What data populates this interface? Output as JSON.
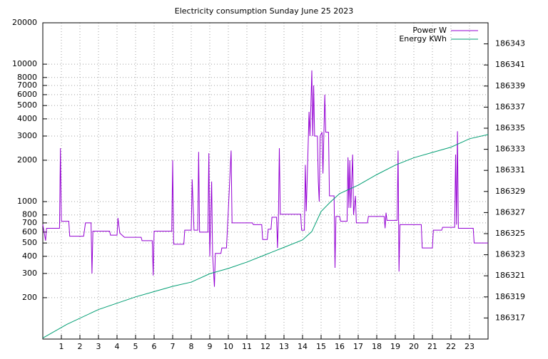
{
  "chart_data": {
    "type": "line",
    "title": "Electricity consumption Sunday June 25 2023",
    "xlim": [
      0,
      24
    ],
    "xticks": [
      1,
      2,
      3,
      4,
      5,
      6,
      7,
      8,
      9,
      10,
      11,
      12,
      13,
      14,
      15,
      16,
      17,
      18,
      19,
      20,
      21,
      22,
      23
    ],
    "ylim": [
      100,
      20000
    ],
    "yticks": [
      200,
      300,
      400,
      500,
      600,
      700,
      800,
      1000,
      2000,
      3000,
      4000,
      5000,
      6000,
      7000,
      8000,
      10000,
      20000
    ],
    "log_y": true,
    "y2lim": [
      186315,
      186345
    ],
    "y2ticks": [
      186317,
      186319,
      186321,
      186323,
      186325,
      186327,
      186329,
      186331,
      186333,
      186335,
      186337,
      186339,
      186341,
      186343
    ],
    "grid": true,
    "legend": "top right",
    "series": [
      {
        "name": "Power W",
        "color": "#9400d3",
        "x": [
          0,
          0.15,
          0.2,
          0.9,
          0.95,
          1.0,
          1.4,
          1.45,
          2.2,
          2.3,
          2.6,
          2.65,
          2.7,
          3.6,
          3.65,
          4.0,
          4.05,
          4.15,
          4.4,
          5.3,
          5.35,
          5.9,
          5.95,
          6.0,
          6.95,
          7.0,
          7.05,
          7.6,
          7.65,
          8.0,
          8.05,
          8.15,
          8.35,
          8.4,
          8.45,
          8.9,
          8.95,
          9.0,
          9.1,
          9.15,
          9.25,
          9.3,
          9.6,
          9.65,
          9.9,
          10.0,
          10.15,
          10.2,
          11.3,
          11.35,
          11.8,
          11.85,
          12.1,
          12.15,
          12.3,
          12.35,
          12.6,
          12.65,
          12.7,
          12.75,
          12.8,
          13.9,
          13.95,
          14.1,
          14.15,
          14.2,
          14.3,
          14.35,
          14.4,
          14.45,
          14.5,
          14.55,
          14.6,
          14.65,
          14.8,
          14.85,
          14.9,
          14.95,
          15.05,
          15.1,
          15.2,
          15.25,
          15.4,
          15.45,
          15.7,
          15.75,
          15.8,
          16.0,
          16.05,
          16.4,
          16.45,
          16.5,
          16.55,
          16.6,
          16.7,
          16.75,
          16.85,
          16.9,
          17.5,
          17.55,
          18.4,
          18.45,
          18.5,
          18.55,
          19.1,
          19.15,
          19.2,
          19.25,
          20.4,
          20.45,
          21.0,
          21.05,
          21.5,
          21.55,
          22.2,
          22.25,
          22.3,
          22.35,
          22.4,
          23.2,
          23.25,
          24
        ],
        "values": [
          680,
          520,
          640,
          640,
          2450,
          720,
          720,
          560,
          560,
          700,
          700,
          300,
          610,
          610,
          570,
          570,
          760,
          590,
          550,
          550,
          520,
          520,
          290,
          610,
          610,
          2000,
          490,
          490,
          620,
          620,
          1450,
          620,
          620,
          2300,
          600,
          600,
          2250,
          400,
          1400,
          420,
          240,
          420,
          420,
          460,
          460,
          870,
          2350,
          700,
          700,
          680,
          680,
          530,
          530,
          630,
          630,
          770,
          770,
          460,
          760,
          2450,
          810,
          810,
          620,
          620,
          1850,
          850,
          2500,
          4500,
          3000,
          5000,
          9000,
          3000,
          7000,
          3000,
          3000,
          1400,
          1000,
          3000,
          3200,
          1600,
          6000,
          3200,
          3200,
          1100,
          1100,
          330,
          780,
          780,
          720,
          720,
          2100,
          900,
          2000,
          900,
          2200,
          800,
          1100,
          700,
          700,
          780,
          780,
          640,
          830,
          730,
          730,
          2350,
          310,
          680,
          680,
          460,
          460,
          620,
          620,
          650,
          650,
          2200,
          680,
          3250,
          640,
          640,
          500,
          500
        ]
      },
      {
        "name": "Energy KWh",
        "color": "#009e73",
        "axis": "y2",
        "x": [
          0,
          1.3,
          3,
          4,
          5,
          6,
          7,
          8,
          9,
          10,
          11,
          12,
          13,
          14,
          14.5,
          15,
          15.5,
          16,
          17,
          18,
          19,
          20,
          21,
          22,
          23,
          24
        ],
        "values": [
          186315.1,
          186316.4,
          186317.8,
          186318.4,
          186319,
          186319.5,
          186320,
          186320.4,
          186321.2,
          186321.7,
          186322.3,
          186323,
          186323.7,
          186324.4,
          186325.2,
          186327.1,
          186328,
          186328.8,
          186329.6,
          186330.6,
          186331.5,
          186332.2,
          186332.7,
          186333.2,
          186334,
          186334.4
        ]
      }
    ]
  }
}
